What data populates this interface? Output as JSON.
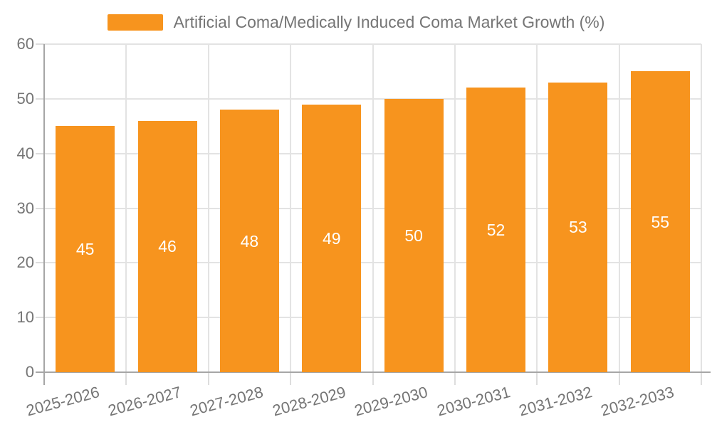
{
  "chart_data": {
    "type": "bar",
    "title": "Artificial Coma/Medically Induced Coma Market Growth (%)",
    "legend": {
      "position": "top",
      "label": "Artificial Coma/Medically Induced Coma Market Growth (%)"
    },
    "categories": [
      "2025-2026",
      "2026-2027",
      "2027-2028",
      "2028-2029",
      "2029-2030",
      "2030-2031",
      "2031-2032",
      "2032-2033"
    ],
    "values": [
      45,
      46,
      48,
      49,
      50,
      52,
      53,
      55
    ],
    "xlabel": "",
    "ylabel": "",
    "ylim": [
      0,
      60
    ],
    "yticks": [
      0,
      10,
      20,
      30,
      40,
      50,
      60
    ],
    "grid": "horizontal-and-category-boundaries",
    "bar_value_labels_inside": true,
    "colors": {
      "bar": "#F7941E",
      "value_label": "#FFFFFF",
      "axis_label": "#757575",
      "legend_text": "#757575",
      "axis_line": "#A6A6A6",
      "gridline": "#E3E3E3",
      "tick": "#DDDDDD",
      "background": "#FFFFFF"
    }
  }
}
